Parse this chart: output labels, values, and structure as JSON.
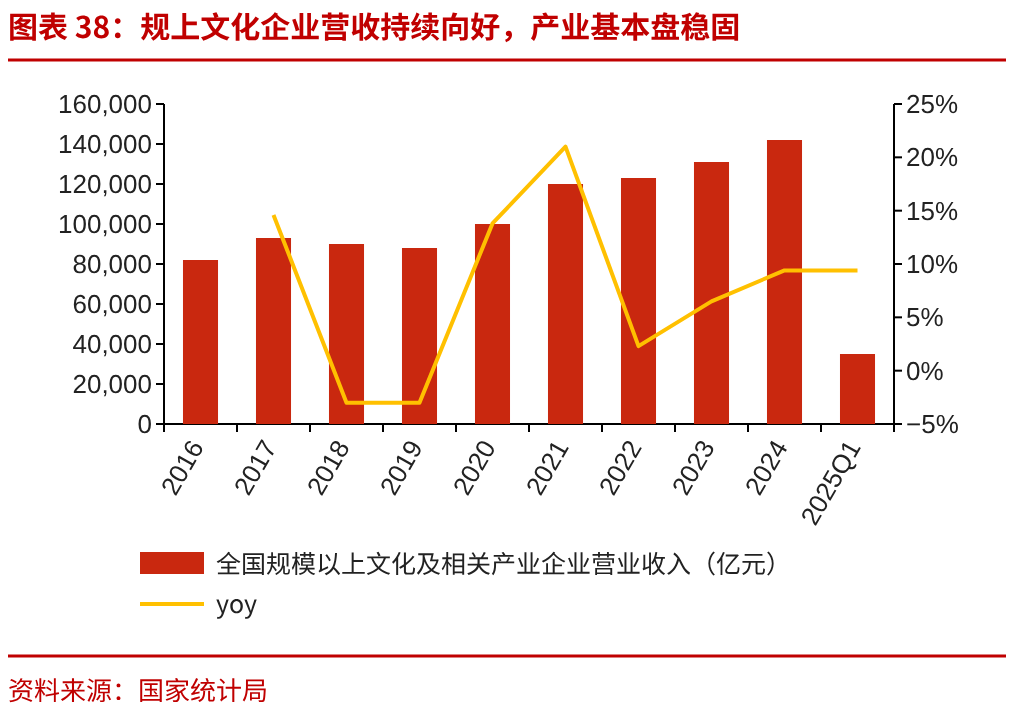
{
  "chart_data": {
    "type": "bar",
    "title": "图表 38：规上文化企业营收持续向好，产业基本盘稳固",
    "categories": [
      "2016",
      "2017",
      "2018",
      "2019",
      "2020",
      "2021",
      "2022",
      "2023",
      "2024",
      "2025Q1"
    ],
    "series": [
      {
        "name": "全国规模以上文化及相关产业企业营业收入（亿元）",
        "color": "#c9280f",
        "values": [
          82000,
          93000,
          90000,
          88000,
          100000,
          120000,
          123000,
          131000,
          142000,
          35000
        ]
      },
      {
        "name": "yoy",
        "type": "line",
        "axis": "y2",
        "color": "#ffc000",
        "values": [
          null,
          14.6,
          -3.0,
          -3.0,
          13.8,
          21.0,
          2.3,
          6.5,
          9.4,
          9.4
        ]
      }
    ],
    "ylim": [
      0,
      160000
    ],
    "yticks": [
      {
        "value": 0,
        "label": "0"
      },
      {
        "value": 20000,
        "label": "20,000"
      },
      {
        "value": 40000,
        "label": "40,000"
      },
      {
        "value": 60000,
        "label": "60,000"
      },
      {
        "value": 80000,
        "label": "80,000"
      },
      {
        "value": 100000,
        "label": "100,000"
      },
      {
        "value": 120000,
        "label": "120,000"
      },
      {
        "value": 140000,
        "label": "140,000"
      },
      {
        "value": 160000,
        "label": "160,000"
      }
    ],
    "y2lim": [
      -5,
      25
    ],
    "y2ticks": [
      {
        "value": -5,
        "label": "−5%"
      },
      {
        "value": 0,
        "label": "0%"
      },
      {
        "value": 5,
        "label": "5%"
      },
      {
        "value": 10,
        "label": "10%"
      },
      {
        "value": 15,
        "label": "15%"
      },
      {
        "value": 20,
        "label": "20%"
      },
      {
        "value": 25,
        "label": "25%"
      }
    ],
    "legend": "bottom",
    "annotations": [
      "资料来源：国家统计局"
    ]
  }
}
